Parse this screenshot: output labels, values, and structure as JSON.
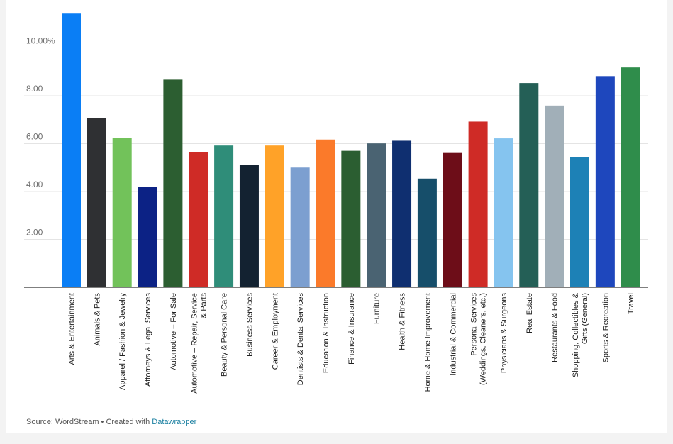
{
  "chart_data": {
    "type": "bar",
    "title": "",
    "xlabel": "",
    "ylabel": "",
    "ylim": [
      0,
      11.5
    ],
    "y_ticks": [
      {
        "value": 2,
        "label": "2.00"
      },
      {
        "value": 4,
        "label": "4.00"
      },
      {
        "value": 6,
        "label": "6.00"
      },
      {
        "value": 8,
        "label": "8.00"
      },
      {
        "value": 10,
        "label": "10.00%"
      }
    ],
    "grid": true,
    "legend": "none",
    "categories": [
      {
        "label": [
          "Arts & Entertainment"
        ],
        "value": 11.43,
        "color": "#0a7ef5"
      },
      {
        "label": [
          "Animals & Pets"
        ],
        "value": 7.06,
        "color": "#2f3033"
      },
      {
        "label": [
          "Apparel / Fashion & Jewelry"
        ],
        "value": 6.25,
        "color": "#72c25a"
      },
      {
        "label": [
          "Attorneys & Legal Services"
        ],
        "value": 4.2,
        "color": "#0c2285"
      },
      {
        "label": [
          "Automotive – For Sale"
        ],
        "value": 8.67,
        "color": "#2c5e31"
      },
      {
        "label": [
          "Automotive – Repair, Service",
          "& Parts"
        ],
        "value": 5.64,
        "color": "#cf2b26"
      },
      {
        "label": [
          "Beauty & Personal Care"
        ],
        "value": 5.92,
        "color": "#2f8d79"
      },
      {
        "label": [
          "Business Services"
        ],
        "value": 5.11,
        "color": "#132231"
      },
      {
        "label": [
          "Career & Employment"
        ],
        "value": 5.92,
        "color": "#ffa228"
      },
      {
        "label": [
          "Dentists & Dental Services"
        ],
        "value": 5.0,
        "color": "#7c9fd0"
      },
      {
        "label": [
          "Education & Instruction"
        ],
        "value": 6.17,
        "color": "#fb7a2a"
      },
      {
        "label": [
          "Finance & Insurance"
        ],
        "value": 5.7,
        "color": "#2b5e31"
      },
      {
        "label": [
          "Furniture"
        ],
        "value": 6.01,
        "color": "#4a6372"
      },
      {
        "label": [
          "Health & Fitness"
        ],
        "value": 6.12,
        "color": "#0f2f70"
      },
      {
        "label": [
          "Home & Home Improvement"
        ],
        "value": 4.54,
        "color": "#164e6a"
      },
      {
        "label": [
          "Industrial & Commercial"
        ],
        "value": 5.61,
        "color": "#6d0d18"
      },
      {
        "label": [
          "Personal Services",
          "(Weddings, Cleaners, etc.)"
        ],
        "value": 6.92,
        "color": "#cf2b26"
      },
      {
        "label": [
          "Physicians & Surgeons"
        ],
        "value": 6.22,
        "color": "#85c4ef"
      },
      {
        "label": [
          "Real Estate"
        ],
        "value": 8.53,
        "color": "#245f56"
      },
      {
        "label": [
          "Restaurants & Food"
        ],
        "value": 7.59,
        "color": "#a1afb8"
      },
      {
        "label": [
          "Shopping, Collectibles &",
          "Gifts (General)"
        ],
        "value": 5.45,
        "color": "#1d81b6"
      },
      {
        "label": [
          "Sports & Recreation"
        ],
        "value": 8.82,
        "color": "#1e47bd"
      },
      {
        "label": [
          "Travel"
        ],
        "value": 9.18,
        "color": "#2f8d4b"
      }
    ]
  },
  "footer": {
    "source_text": "Source: WordStream • Created with ",
    "link_text": "Datawrapper"
  }
}
